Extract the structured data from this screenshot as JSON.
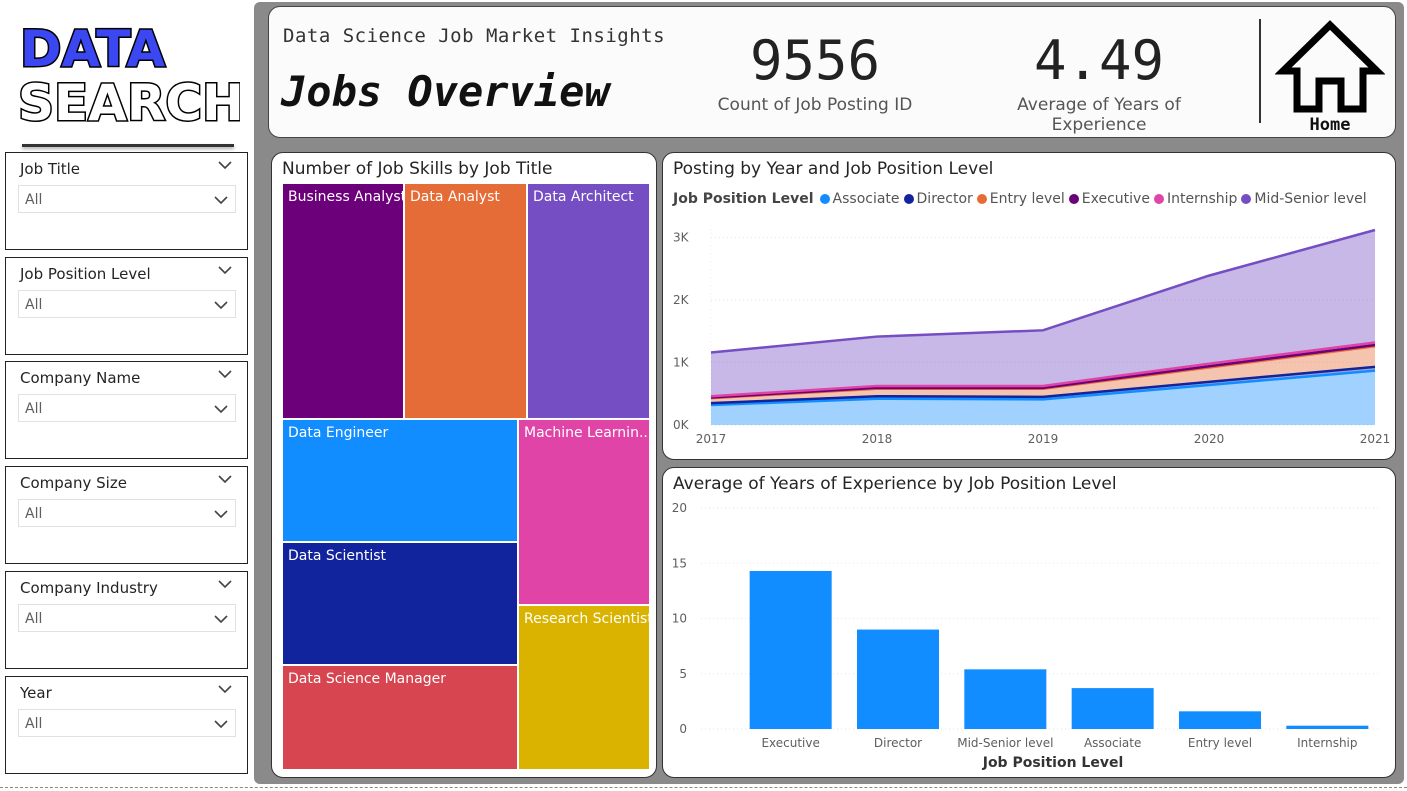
{
  "logo": {
    "line1": "DATA",
    "line2": "SEARCH"
  },
  "slicers": [
    {
      "title": "Job Title",
      "value": "All"
    },
    {
      "title": "Job Position Level",
      "value": "All"
    },
    {
      "title": "Company Name",
      "value": "All"
    },
    {
      "title": "Company Size",
      "value": "All"
    },
    {
      "title": "Company Industry",
      "value": "All"
    },
    {
      "title": "Year",
      "value": "All"
    }
  ],
  "header": {
    "subtitle": "Data Science Job Market Insights",
    "title": "Jobs Overview",
    "kpi1": {
      "value": "9556",
      "label": "Count of Job Posting ID"
    },
    "kpi2": {
      "value": "4.49",
      "label": "Average of Years of Experience"
    },
    "home_label": "Home"
  },
  "treemap": {
    "title": "Number of Job Skills by Job Title",
    "tiles": [
      {
        "label": "Business Analyst",
        "color": "#6b007a"
      },
      {
        "label": "Data Analyst",
        "color": "#e66c37"
      },
      {
        "label": "Data Architect",
        "color": "#744ec2"
      },
      {
        "label": "Data Engineer",
        "color": "#118dff"
      },
      {
        "label": "Machine Learnin...",
        "color": "#e044a7"
      },
      {
        "label": "Data Scientist",
        "color": "#12239e"
      },
      {
        "label": "Research Scientist",
        "color": "#d9b300"
      },
      {
        "label": "Data Science Manager",
        "color": "#d64550"
      }
    ]
  },
  "area_chart": {
    "title": "Posting by Year and Job Position Level",
    "legend_title": "Job Position Level",
    "legend": [
      {
        "name": "Associate",
        "color": "#118dff"
      },
      {
        "name": "Director",
        "color": "#12239e"
      },
      {
        "name": "Entry level",
        "color": "#e66c37"
      },
      {
        "name": "Executive",
        "color": "#6b007a"
      },
      {
        "name": "Internship",
        "color": "#e044a7"
      },
      {
        "name": "Mid-Senior level",
        "color": "#744ec2"
      }
    ],
    "y_ticks": [
      "0K",
      "1K",
      "2K",
      "3K"
    ]
  },
  "bar_chart": {
    "title": "Average of Years of Experience by Job Position Level",
    "xlabel": "Job Position Level",
    "bar_color": "#118dff"
  },
  "chart_data": [
    {
      "type": "area",
      "title": "Posting by Year and Job Position Level",
      "x": [
        2017,
        2018,
        2019,
        2020,
        2021
      ],
      "stacked": true,
      "series": [
        {
          "name": "Associate",
          "values": [
            320,
            420,
            410,
            640,
            870
          ]
        },
        {
          "name": "Director",
          "values": [
            30,
            40,
            40,
            50,
            60
          ]
        },
        {
          "name": "Entry level",
          "values": [
            80,
            120,
            130,
            230,
            330
          ]
        },
        {
          "name": "Executive",
          "values": [
            10,
            15,
            15,
            20,
            20
          ]
        },
        {
          "name": "Internship",
          "values": [
            20,
            30,
            30,
            40,
            40
          ]
        },
        {
          "name": "Mid-Senior level",
          "values": [
            700,
            790,
            890,
            1410,
            1800
          ]
        }
      ],
      "ylim": [
        0,
        3200
      ],
      "y_ticks": [
        0,
        1000,
        2000,
        3000
      ],
      "grid": true,
      "legend_position": "top-left"
    },
    {
      "type": "bar",
      "title": "Average of Years of Experience by Job Position Level",
      "categories": [
        "Executive",
        "Director",
        "Mid-Senior level",
        "Associate",
        "Entry level",
        "Internship"
      ],
      "values": [
        14.3,
        9.0,
        5.4,
        3.7,
        1.6,
        0.3
      ],
      "xlabel": "Job Position Level",
      "ylim": [
        0,
        20
      ],
      "y_ticks": [
        0,
        5,
        10,
        15,
        20
      ],
      "grid": true
    }
  ]
}
